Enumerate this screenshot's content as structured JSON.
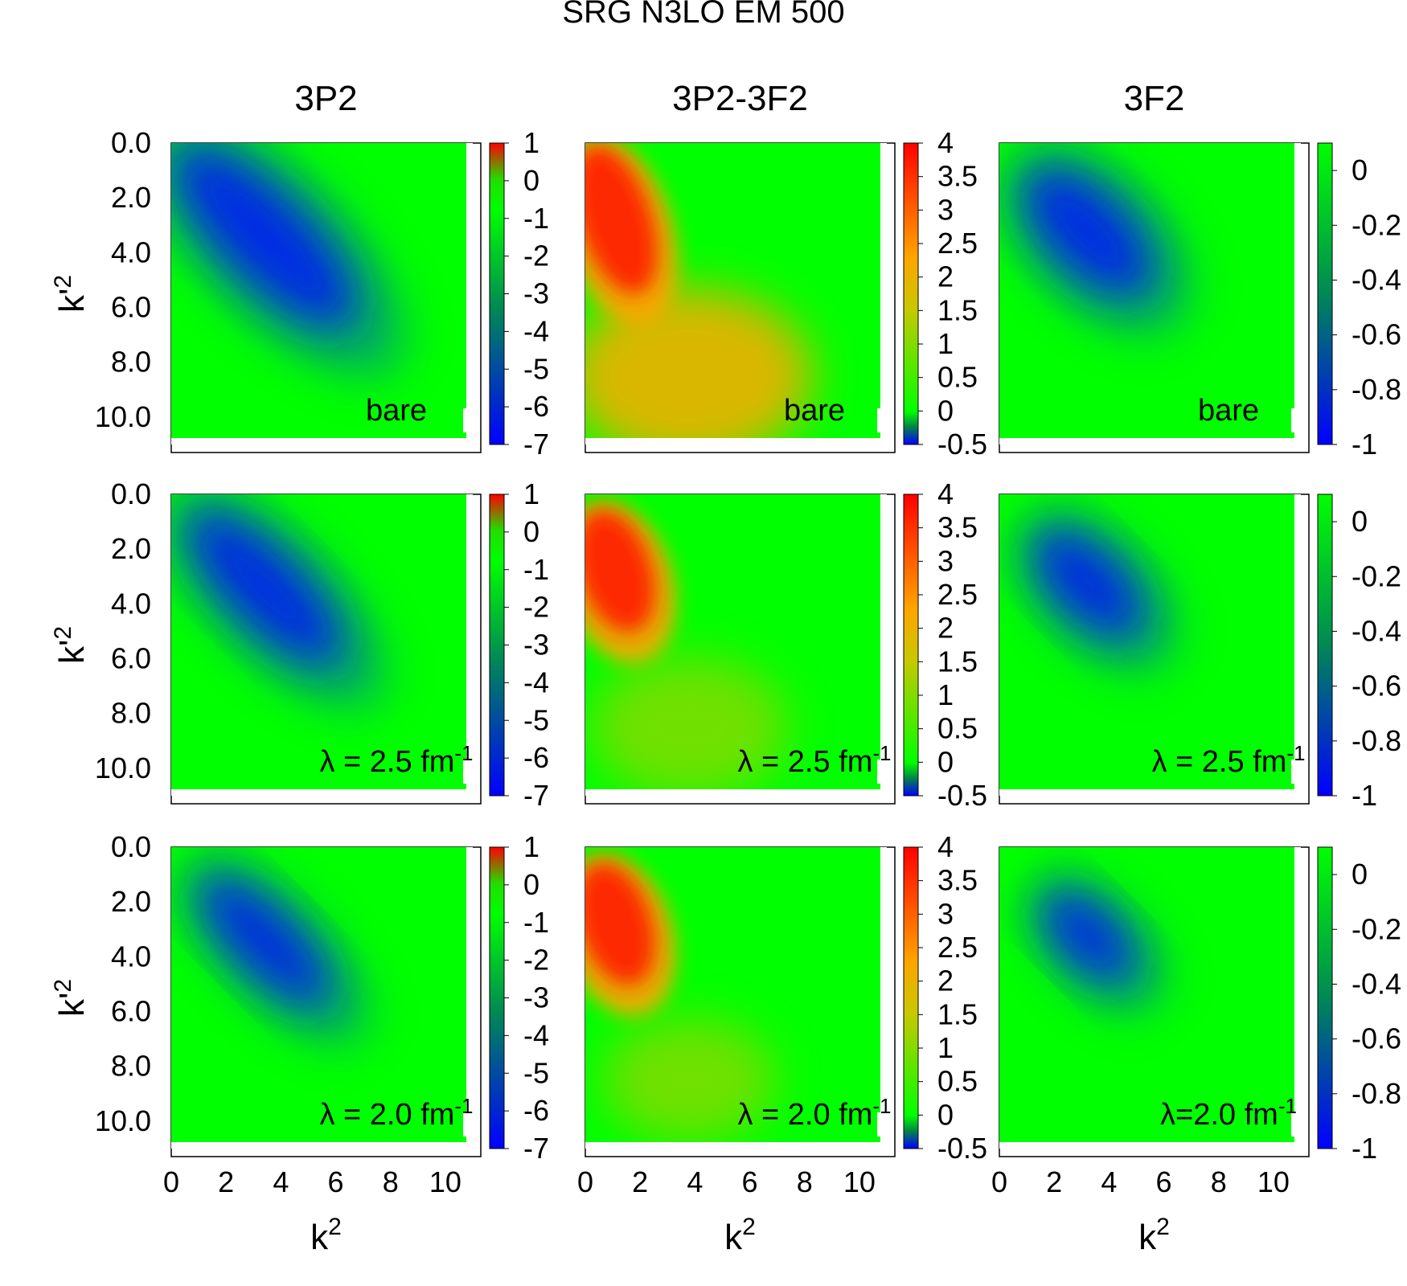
{
  "chart_data": {
    "type": "heatmap",
    "title": "SRG N3LO EM 500",
    "xlabel": "k²",
    "ylabel": "k'²",
    "xlim": [
      0,
      11
    ],
    "ylim": [
      0,
      11
    ],
    "x_ticks": [
      "0",
      "2",
      "4",
      "6",
      "8",
      "10"
    ],
    "y_ticks": [
      "0.0",
      "2.0",
      "4.0",
      "6.0",
      "8.0",
      "10.0"
    ],
    "colormap": {
      "stops": [
        {
          "pos": 0.0,
          "color": "#0000ff"
        },
        {
          "pos": 0.45,
          "color": "#008844"
        },
        {
          "pos": 0.75,
          "color": "#00ff00"
        },
        {
          "pos": 0.87,
          "color": "#ffa500"
        },
        {
          "pos": 1.0,
          "color": "#ff0000"
        }
      ]
    },
    "columns": [
      {
        "name": "3P2",
        "cbrange": [
          -7,
          1
        ],
        "cbticks": [
          "1",
          "0",
          "-1",
          "-2",
          "-3",
          "-4",
          "-5",
          "-6",
          "-7"
        ],
        "colormap": "low",
        "feature": {
          "peak": -6.8,
          "kind": "diagonal-trough"
        }
      },
      {
        "name": "3P2-3F2",
        "cbrange": [
          -0.5,
          4
        ],
        "cbticks": [
          "4",
          "3.5",
          "3",
          "2.5",
          "2",
          "1.5",
          "1",
          "0.5",
          "0",
          "-0.5"
        ],
        "colormap": "high",
        "feature": {
          "peak": 3.7,
          "kind": "corner-lobe"
        }
      },
      {
        "name": "3F2",
        "cbrange": [
          -1,
          0.1
        ],
        "cbticks": [
          "0",
          "-0.2",
          "-0.4",
          "-0.6",
          "-0.8",
          "-1"
        ],
        "colormap": "low",
        "feature": {
          "peak": -1.0,
          "kind": "diagonal-trough"
        }
      }
    ],
    "rows": [
      {
        "label_prefix": "",
        "lambda": "",
        "label_unit": "bare",
        "label_exp": "",
        "x_values": [
          0,
          0,
          0
        ],
        "labels": [
          "bare",
          "bare",
          "bare"
        ]
      },
      {
        "labels": [
          "λ = 2.5 fm",
          "λ = 2.5 fm",
          "λ = 2.5 fm"
        ],
        "superscript": "-1",
        "lambda": 2.5
      },
      {
        "labels": [
          "λ = 2.0 fm",
          "λ = 2.0 fm",
          "λ=2.0 fm"
        ],
        "superscript": "-1",
        "lambda": 2.0
      }
    ],
    "panel_labels": [
      [
        "bare",
        "bare",
        "bare"
      ],
      [
        "λ = 2.5 fm",
        "λ = 2.5 fm",
        "λ = 2.5 fm"
      ],
      [
        "λ = 2.0 fm",
        "λ = 2.0 fm",
        "λ=2.0 fm"
      ]
    ],
    "panel_label_superscripts": [
      [
        "",
        "",
        ""
      ],
      [
        "-1",
        "-1",
        "-1"
      ],
      [
        "-1",
        "-1",
        "-1"
      ]
    ]
  }
}
